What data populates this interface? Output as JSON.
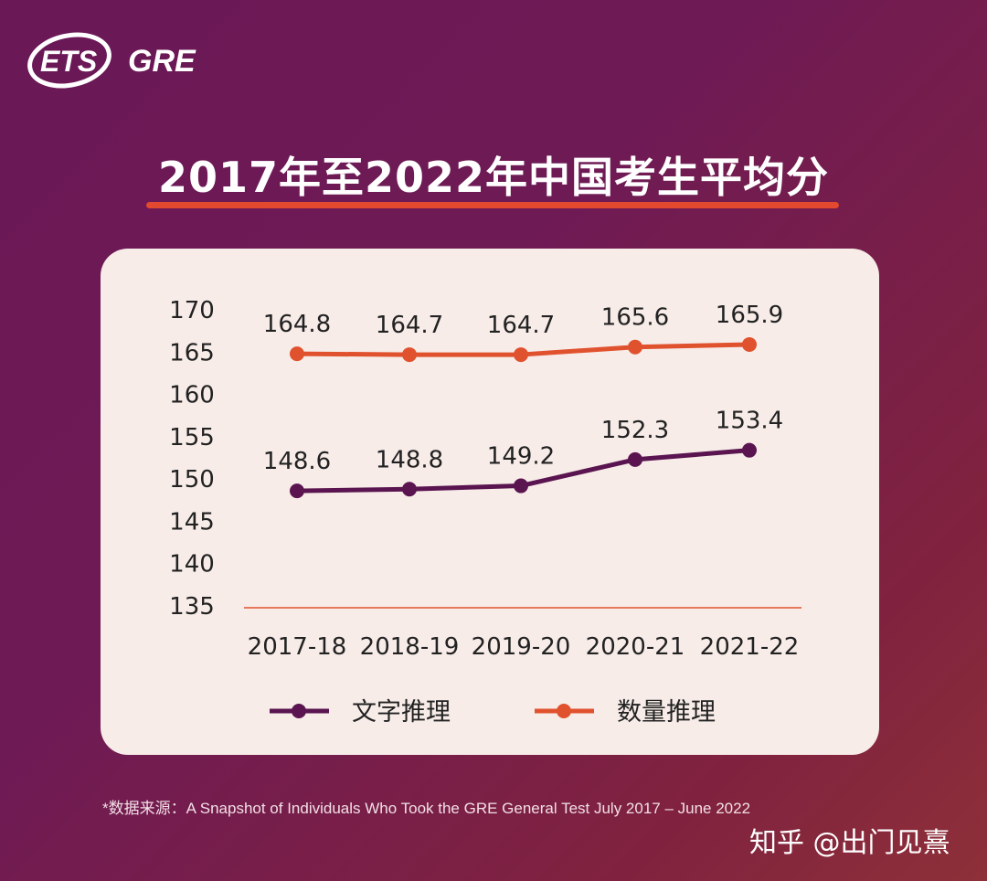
{
  "logo": {
    "brand1": "ETS",
    "brand2": "GRE"
  },
  "title": "2017年至2022年中国考生平均分",
  "chart_data": {
    "type": "line",
    "title": "2017年至2022年中国考生平均分",
    "categories": [
      "2017-18",
      "2018-19",
      "2019-20",
      "2020-21",
      "2021-22"
    ],
    "y_ticks": [
      170,
      165,
      160,
      155,
      150,
      145,
      140,
      135
    ],
    "ylim": [
      135,
      170
    ],
    "grid": false,
    "legend_position": "bottom",
    "series": [
      {
        "name": "文字推理",
        "color": "#5a1450",
        "values": [
          148.6,
          148.8,
          149.2,
          152.3,
          153.4
        ]
      },
      {
        "name": "数量推理",
        "color": "#e0522e",
        "values": [
          164.8,
          164.7,
          164.7,
          165.6,
          165.9
        ]
      }
    ]
  },
  "footnote": "*数据来源：A Snapshot of Individuals Who Took the GRE General Test July 2017 – June 2022",
  "watermark": "知乎 @出门见熹"
}
